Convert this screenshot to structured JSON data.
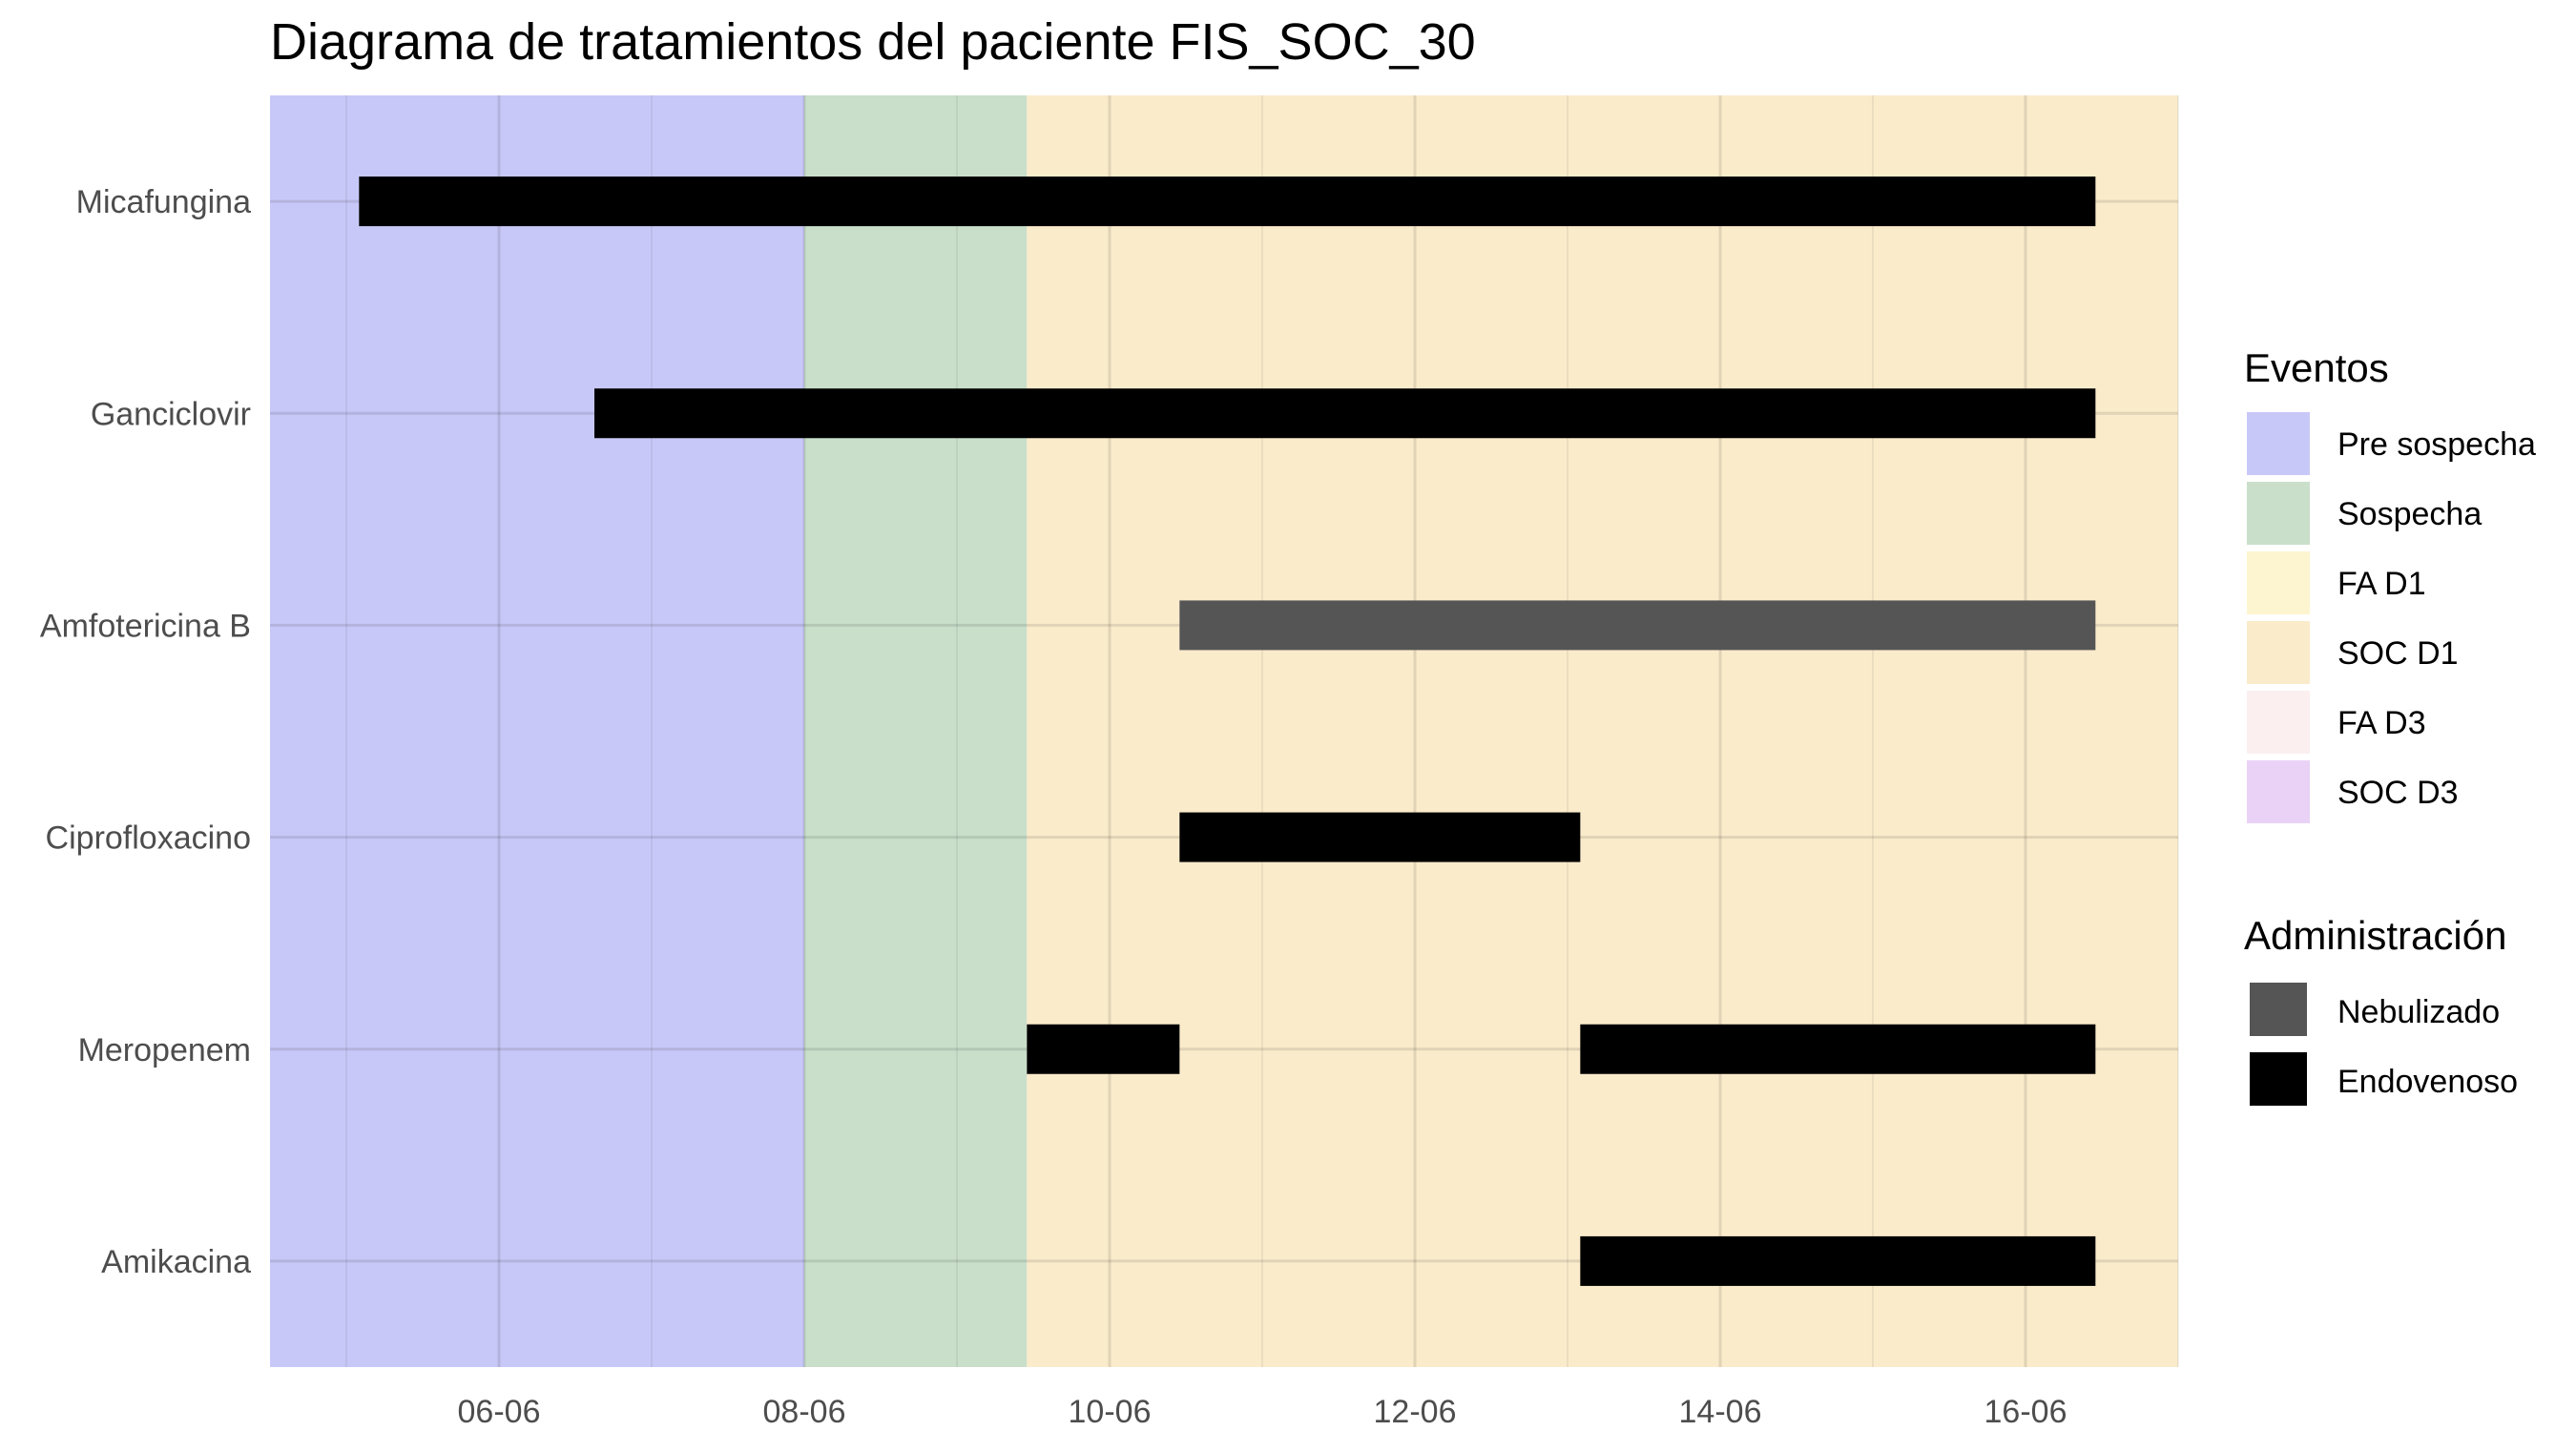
{
  "chart_data": {
    "type": "gantt",
    "title": "Diagrama de tratamientos del paciente FIS_SOC_30",
    "xlabel": "",
    "ylabel": "",
    "x_axis": {
      "type": "date",
      "range": [
        "2024-06-04T12:00",
        "2024-06-17T00:00"
      ],
      "ticks": [
        {
          "date": "2024-06-06",
          "label": "06-06"
        },
        {
          "date": "2024-06-08",
          "label": "08-06"
        },
        {
          "date": "2024-06-10",
          "label": "10-06"
        },
        {
          "date": "2024-06-12",
          "label": "12-06"
        },
        {
          "date": "2024-06-14",
          "label": "14-06"
        },
        {
          "date": "2024-06-16",
          "label": "16-06"
        }
      ]
    },
    "categories": [
      "Micafungina",
      "Ganciclovir",
      "Amfotericina B",
      "Ciprofloxacino",
      "Meropenem",
      "Amikacina"
    ],
    "phases": [
      {
        "event": "Pre sospecha",
        "start": "2024-06-04T12:00",
        "end": "2024-06-08T00:00"
      },
      {
        "event": "Sospecha",
        "start": "2024-06-08T00:00",
        "end": "2024-06-09T11:00"
      },
      {
        "event": "SOC D1",
        "start": "2024-06-09T11:00",
        "end": "2024-06-17T00:00"
      }
    ],
    "bars": [
      {
        "treatment": "Micafungina",
        "start": "2024-06-05T02:00",
        "end": "2024-06-16T11:00",
        "administration": "Endovenoso"
      },
      {
        "treatment": "Ganciclovir",
        "start": "2024-06-06T15:00",
        "end": "2024-06-16T11:00",
        "administration": "Endovenoso"
      },
      {
        "treatment": "Amfotericina B",
        "start": "2024-06-10T11:00",
        "end": "2024-06-16T11:00",
        "administration": "Nebulizado"
      },
      {
        "treatment": "Ciprofloxacino",
        "start": "2024-06-10T11:00",
        "end": "2024-06-13T02:00",
        "administration": "Endovenoso"
      },
      {
        "treatment": "Meropenem",
        "start": "2024-06-09T11:00",
        "end": "2024-06-10T11:00",
        "administration": "Endovenoso"
      },
      {
        "treatment": "Meropenem",
        "start": "2024-06-13T02:00",
        "end": "2024-06-16T11:00",
        "administration": "Endovenoso"
      },
      {
        "treatment": "Amikacina",
        "start": "2024-06-13T02:00",
        "end": "2024-06-16T11:00",
        "administration": "Endovenoso"
      }
    ],
    "legend": {
      "placement": "right",
      "eventos": {
        "title": "Eventos",
        "items": [
          {
            "label": "Pre sospecha",
            "color": "#c8c8f8"
          },
          {
            "label": "Sospecha",
            "color": "#c9dfca"
          },
          {
            "label": "FA D1",
            "color": "#fdf5cf"
          },
          {
            "label": "SOC D1",
            "color": "#faebcb"
          },
          {
            "label": "FA D3",
            "color": "#fbeff0"
          },
          {
            "label": "SOC D3",
            "color": "#e9d2f6"
          }
        ]
      },
      "administracion": {
        "title": "Administración",
        "items": [
          {
            "label": "Nebulizado",
            "color": "#555555"
          },
          {
            "label": "Endovenoso",
            "color": "#000000"
          }
        ]
      }
    },
    "grid": true
  }
}
